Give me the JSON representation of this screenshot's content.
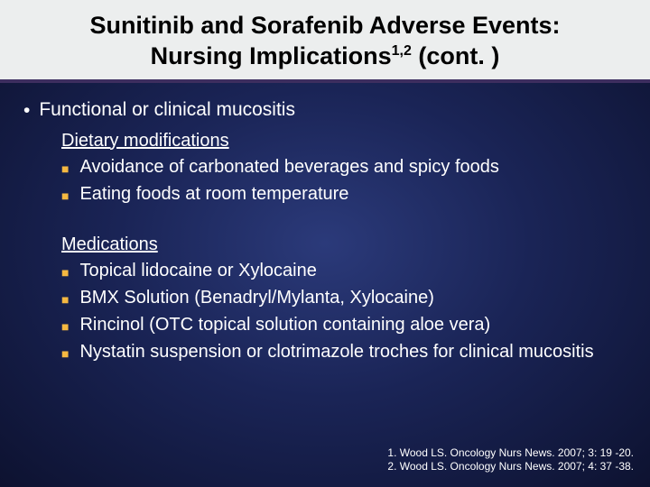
{
  "title": {
    "line1": "Sunitinib and Sorafenib Adverse Events:",
    "line2_a": "Nursing Implications",
    "line2_sup": "1,2",
    "line2_b": " (cont. )"
  },
  "main_bullet": "Functional or clinical mucositis",
  "section1_heading": "Dietary modifications",
  "section1_items": [
    "Avoidance of carbonated beverages and spicy foods",
    "Eating foods at room temperature"
  ],
  "section2_heading": "Medications",
  "section2_items": [
    "Topical lidocaine or Xylocaine",
    "BMX Solution (Benadryl/Mylanta, Xylocaine)",
    "Rincinol (OTC topical solution containing aloe vera)",
    "Nystatin suspension or clotrimazole troches for clinical mucositis"
  ],
  "references": [
    "1. Wood LS. Oncology Nurs News. 2007; 3: 19 -20.",
    "2. Wood LS. Oncology Nurs News. 2007; 4: 37 -38."
  ],
  "colors": {
    "title_bg": "#eceeee",
    "title_border": "#3d2e5f",
    "bullet_square": "#f5b841",
    "text": "#ffffff"
  }
}
